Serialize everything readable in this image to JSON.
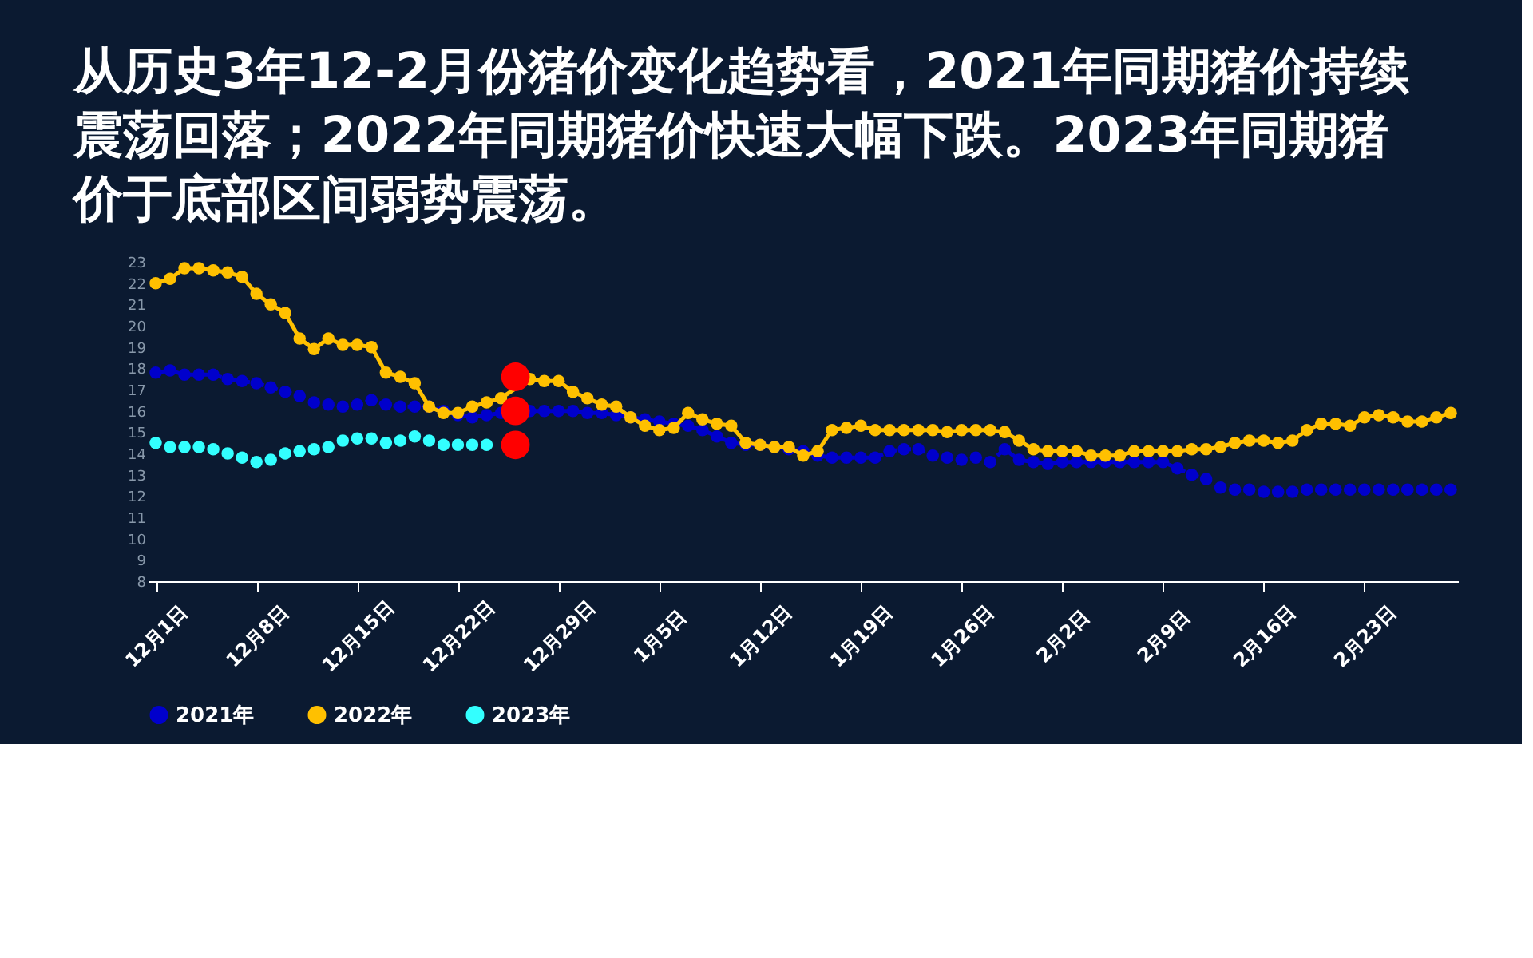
{
  "chart_data": {
    "type": "line",
    "title": "从历史3年12-2月份猪价变化趋势看，2021年同期猪价持续震荡回落；2022年同期猪价快速大幅下跌。2023年同期猪价于底部区间弱势震荡。",
    "categories": [
      "12月1日",
      null,
      null,
      null,
      null,
      null,
      null,
      "12月8日",
      null,
      null,
      null,
      null,
      null,
      null,
      "12月15日",
      null,
      null,
      null,
      null,
      null,
      null,
      "12月22日",
      null,
      null,
      null,
      null,
      null,
      null,
      "12月29日",
      null,
      null,
      null,
      null,
      null,
      null,
      "1月5日",
      null,
      null,
      null,
      null,
      null,
      null,
      "1月12日",
      null,
      null,
      null,
      null,
      null,
      null,
      "1月19日",
      null,
      null,
      null,
      null,
      null,
      null,
      "1月26日",
      null,
      null,
      null,
      null,
      null,
      null,
      "2月2日",
      null,
      null,
      null,
      null,
      null,
      null,
      "2月9日",
      null,
      null,
      null,
      null,
      null,
      null,
      "2月16日",
      null,
      null,
      null,
      null,
      null,
      null,
      "2月23日",
      null,
      null,
      null,
      null,
      null,
      null
    ],
    "series": [
      {
        "name": "2021年",
        "line_style": "dashed",
        "marker": "circle",
        "color": "#0000cc",
        "values": [
          17.8,
          17.9,
          17.7,
          17.7,
          17.7,
          17.5,
          17.4,
          17.3,
          17.1,
          16.9,
          16.7,
          16.4,
          16.3,
          16.2,
          16.3,
          16.5,
          16.3,
          16.2,
          16.2,
          16.2,
          16.0,
          15.8,
          15.7,
          15.8,
          15.9,
          16.0,
          16.0,
          16.0,
          16.0,
          16.0,
          15.9,
          15.9,
          15.8,
          15.7,
          15.6,
          15.5,
          15.4,
          15.3,
          15.1,
          14.8,
          14.5,
          14.4,
          14.4,
          14.3,
          14.2,
          14.1,
          13.9,
          13.8,
          13.8,
          13.8,
          13.8,
          14.1,
          14.2,
          14.2,
          13.9,
          13.8,
          13.7,
          13.8,
          13.6,
          14.2,
          13.7,
          13.6,
          13.5,
          13.6,
          13.6,
          13.6,
          13.6,
          13.6,
          13.6,
          13.6,
          13.6,
          13.3,
          13.0,
          12.8,
          12.4,
          12.3,
          12.3,
          12.2,
          12.2,
          12.2,
          12.3,
          12.3,
          12.3,
          12.3,
          12.3,
          12.3,
          12.3,
          12.3,
          12.3,
          12.3,
          12.3
        ]
      },
      {
        "name": "2022年",
        "line_style": "solid",
        "marker": "circle",
        "color": "#ffc000",
        "values": [
          22.0,
          22.2,
          22.7,
          22.7,
          22.6,
          22.5,
          22.3,
          21.5,
          21.0,
          20.6,
          19.4,
          18.9,
          19.4,
          19.1,
          19.1,
          19.0,
          17.8,
          17.6,
          17.3,
          16.2,
          15.9,
          15.9,
          16.2,
          16.4,
          16.6,
          null,
          17.5,
          17.4,
          17.4,
          16.9,
          16.6,
          16.3,
          16.2,
          15.7,
          15.3,
          15.1,
          15.2,
          15.9,
          15.6,
          15.4,
          15.3,
          14.5,
          14.4,
          14.3,
          14.3,
          13.9,
          14.1,
          15.1,
          15.2,
          15.3,
          15.1,
          15.1,
          15.1,
          15.1,
          15.1,
          15.0,
          15.1,
          15.1,
          15.1,
          15.0,
          14.6,
          14.2,
          14.1,
          14.1,
          14.1,
          13.9,
          13.9,
          13.9,
          14.1,
          14.1,
          14.1,
          14.1,
          14.2,
          14.2,
          14.3,
          14.5,
          14.6,
          14.6,
          14.5,
          14.6,
          15.1,
          15.4,
          15.4,
          15.3,
          15.7,
          15.8,
          15.7,
          15.5,
          15.5,
          15.7,
          15.9
        ]
      },
      {
        "name": "2023年",
        "type": "scatter",
        "marker": "circle",
        "color": "#33ffff",
        "values": [
          14.5,
          14.3,
          14.3,
          14.3,
          14.2,
          14.0,
          13.8,
          13.6,
          13.7,
          14.0,
          14.1,
          14.2,
          14.3,
          14.6,
          14.7,
          14.7,
          14.5,
          14.6,
          14.8,
          14.6,
          14.4,
          14.4,
          14.4,
          14.4,
          null,
          null,
          null,
          null,
          null,
          null,
          null,
          null,
          null,
          null,
          null,
          null,
          null,
          null,
          null,
          null,
          null,
          null,
          null,
          null,
          null,
          null,
          null,
          null,
          null,
          null,
          null,
          null,
          null,
          null,
          null,
          null,
          null,
          null,
          null,
          null,
          null,
          null,
          null,
          null,
          null,
          null,
          null,
          null,
          null,
          null,
          null,
          null,
          null,
          null,
          null,
          null,
          null,
          null,
          null,
          null,
          null,
          null,
          null,
          null,
          null,
          null,
          null,
          null,
          null,
          null,
          null
        ]
      },
      {
        "type": "scatter",
        "marker": "circle",
        "color": "#ff0000",
        "values": [
          null,
          null,
          null,
          null,
          null,
          null,
          null,
          null,
          null,
          null,
          null,
          null,
          null,
          null,
          null,
          null,
          null,
          null,
          null,
          null,
          null,
          null,
          null,
          null,
          null,
          17.6,
          null,
          null,
          null,
          null,
          null,
          null,
          null,
          null,
          null,
          null,
          null,
          null,
          null,
          null,
          null,
          null,
          null,
          null,
          null,
          null,
          null,
          null,
          null,
          null,
          null,
          null,
          null,
          null,
          null,
          null,
          null,
          null,
          null,
          null,
          null,
          null,
          null,
          null,
          null,
          null,
          null,
          null,
          null,
          null,
          null,
          null,
          null,
          null,
          null,
          null,
          null,
          null,
          null,
          null,
          null,
          null,
          null,
          null,
          null,
          null,
          null,
          null,
          null,
          null,
          null
        ]
      },
      {
        "type": "scatter",
        "marker": "circle",
        "color": "#ff0000",
        "values": [
          null,
          null,
          null,
          null,
          null,
          null,
          null,
          null,
          null,
          null,
          null,
          null,
          null,
          null,
          null,
          null,
          null,
          null,
          null,
          null,
          null,
          null,
          null,
          null,
          null,
          16.0,
          null,
          null,
          null,
          null,
          null,
          null,
          null,
          null,
          null,
          null,
          null,
          null,
          null,
          null,
          null,
          null,
          null,
          null,
          null,
          null,
          null,
          null,
          null,
          null,
          null,
          null,
          null,
          null,
          null,
          null,
          null,
          null,
          null,
          null,
          null,
          null,
          null,
          null,
          null,
          null,
          null,
          null,
          null,
          null,
          null,
          null,
          null,
          null,
          null,
          null,
          null,
          null,
          null,
          null,
          null,
          null,
          null,
          null,
          null,
          null,
          null,
          null,
          null,
          null,
          null
        ]
      },
      {
        "type": "scatter",
        "marker": "circle",
        "color": "#ff0000",
        "values": [
          null,
          null,
          null,
          null,
          null,
          null,
          null,
          null,
          null,
          null,
          null,
          null,
          null,
          null,
          null,
          null,
          null,
          null,
          null,
          null,
          null,
          null,
          null,
          null,
          null,
          14.4,
          null,
          null,
          null,
          null,
          null,
          null,
          null,
          null,
          null,
          null,
          null,
          null,
          null,
          null,
          null,
          null,
          null,
          null,
          null,
          null,
          null,
          null,
          null,
          null,
          null,
          null,
          null,
          null,
          null,
          null,
          null,
          null,
          null,
          null,
          null,
          null,
          null,
          null,
          null,
          null,
          null,
          null,
          null,
          null,
          null,
          null,
          null,
          null,
          null,
          null,
          null,
          null,
          null,
          null,
          null,
          null,
          null,
          null,
          null,
          null,
          null,
          null,
          null,
          null,
          null
        ]
      }
    ],
    "ylim": [
      8,
      23
    ],
    "yticks": [
      8,
      9,
      10,
      11,
      12,
      13,
      14,
      15,
      16,
      17,
      18,
      19,
      20,
      21,
      22,
      23
    ],
    "grid": false,
    "legend": "bottom"
  }
}
